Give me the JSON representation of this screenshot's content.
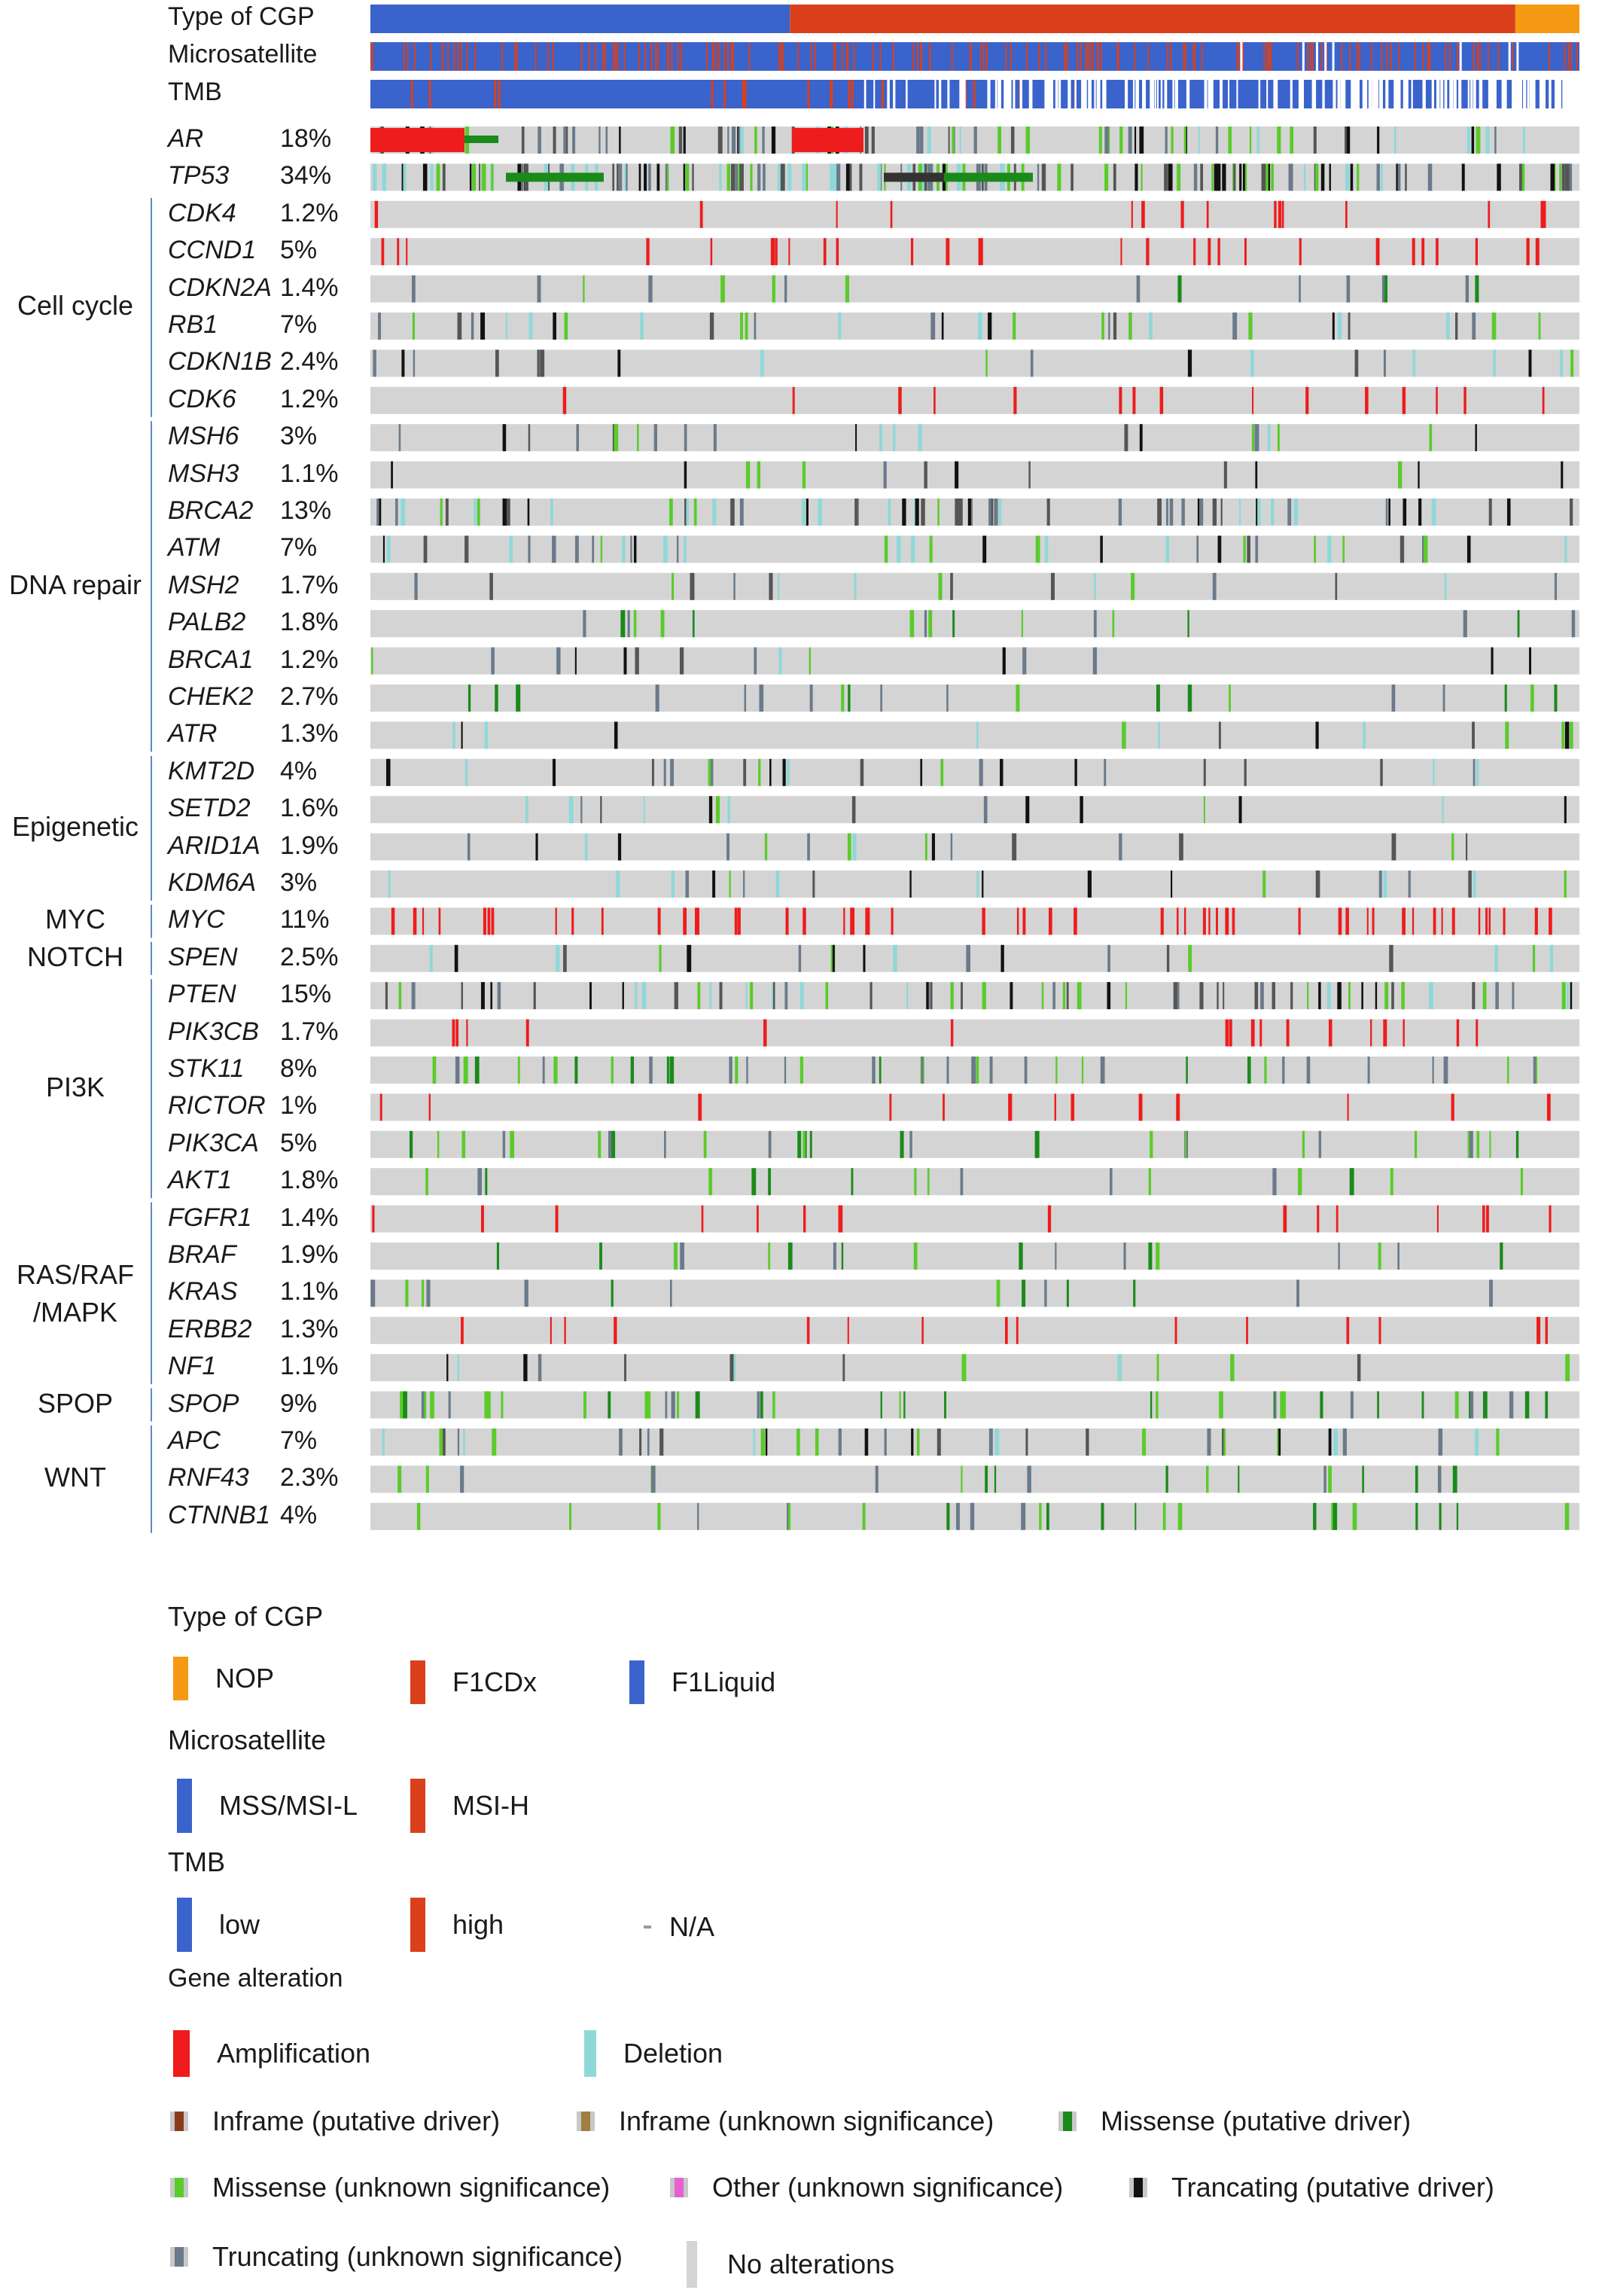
{
  "chart_data": {
    "type": "oncoprint",
    "tracks": [
      {
        "key": "cgp",
        "label": "Type of CGP"
      },
      {
        "key": "msi",
        "label": "Microsatellite"
      },
      {
        "key": "tmb",
        "label": "TMB"
      }
    ],
    "cgp_segments": [
      {
        "type": "F1Liquid",
        "fraction": 0.347
      },
      {
        "type": "F1CDx",
        "fraction": 0.6
      },
      {
        "type": "NOP",
        "fraction": 0.053
      }
    ],
    "groups": [
      {
        "name_lines": [
          "Cell cycle"
        ],
        "genes": [
          {
            "gene": "CDK4",
            "percent": "1.2%"
          },
          {
            "gene": "CCND1",
            "percent": "5%"
          },
          {
            "gene": "CDKN2A",
            "percent": "1.4%"
          },
          {
            "gene": "RB1",
            "percent": "7%"
          },
          {
            "gene": "CDKN1B",
            "percent": "2.4%"
          },
          {
            "gene": "CDK6",
            "percent": "1.2%"
          }
        ]
      },
      {
        "name_lines": [
          "DNA repair"
        ],
        "genes": [
          {
            "gene": "MSH6",
            "percent": "3%"
          },
          {
            "gene": "MSH3",
            "percent": "1.1%"
          },
          {
            "gene": "BRCA2",
            "percent": "13%"
          },
          {
            "gene": "ATM",
            "percent": "7%"
          },
          {
            "gene": "MSH2",
            "percent": "1.7%"
          },
          {
            "gene": "PALB2",
            "percent": "1.8%"
          },
          {
            "gene": "BRCA1",
            "percent": "1.2%"
          },
          {
            "gene": "CHEK2",
            "percent": "2.7%"
          },
          {
            "gene": "ATR",
            "percent": "1.3%"
          }
        ]
      },
      {
        "name_lines": [
          "Epigenetic"
        ],
        "genes": [
          {
            "gene": "KMT2D",
            "percent": "4%"
          },
          {
            "gene": "SETD2",
            "percent": "1.6%"
          },
          {
            "gene": "ARID1A",
            "percent": "1.9%"
          },
          {
            "gene": "KDM6A",
            "percent": "3%"
          }
        ]
      },
      {
        "name_lines": [
          "MYC"
        ],
        "genes": [
          {
            "gene": "MYC",
            "percent": "11%"
          }
        ]
      },
      {
        "name_lines": [
          "NOTCH"
        ],
        "genes": [
          {
            "gene": "SPEN",
            "percent": "2.5%"
          }
        ]
      },
      {
        "name_lines": [
          "PI3K"
        ],
        "genes": [
          {
            "gene": "PTEN",
            "percent": "15%"
          },
          {
            "gene": "PIK3CB",
            "percent": "1.7%"
          },
          {
            "gene": "STK11",
            "percent": "8%"
          },
          {
            "gene": "RICTOR",
            "percent": "1%"
          },
          {
            "gene": "PIK3CA",
            "percent": "5%"
          },
          {
            "gene": "AKT1",
            "percent": "1.8%"
          }
        ]
      },
      {
        "name_lines": [
          "RAS/RAF",
          "/MAPK"
        ],
        "genes": [
          {
            "gene": "FGFR1",
            "percent": "1.4%"
          },
          {
            "gene": "BRAF",
            "percent": "1.9%"
          },
          {
            "gene": "KRAS",
            "percent": "1.1%"
          },
          {
            "gene": "ERBB2",
            "percent": "1.3%"
          },
          {
            "gene": "NF1",
            "percent": "1.1%"
          }
        ]
      },
      {
        "name_lines": [
          "SPOP"
        ],
        "genes": [
          {
            "gene": "SPOP",
            "percent": "9%"
          }
        ]
      },
      {
        "name_lines": [
          "WNT"
        ],
        "genes": [
          {
            "gene": "APC",
            "percent": "7%"
          },
          {
            "gene": "RNF43",
            "percent": "2.3%"
          },
          {
            "gene": "CTNNB1",
            "percent": "4%"
          }
        ]
      }
    ],
    "ungrouped_genes": [
      {
        "gene": "AR",
        "percent": "18%"
      },
      {
        "gene": "TP53",
        "percent": "34%"
      }
    ]
  },
  "legend": {
    "cgp": {
      "title": "Type of CGP",
      "items": [
        {
          "label": "NOP",
          "color": "#f59a12"
        },
        {
          "label": "F1CDx",
          "color": "#d9401b"
        },
        {
          "label": "F1Liquid",
          "color": "#3a63cc"
        }
      ]
    },
    "msi": {
      "title": "Microsatellite",
      "items": [
        {
          "label": "MSS/MSI-L",
          "color": "#3a63cc"
        },
        {
          "label": "MSI-H",
          "color": "#d9401b"
        }
      ]
    },
    "tmb": {
      "title": "TMB",
      "items": [
        {
          "label": "low",
          "color": "#3a63cc"
        },
        {
          "label": "high",
          "color": "#d9401b"
        },
        {
          "label": "N/A",
          "color": "#9a9a9a"
        }
      ]
    },
    "alteration": {
      "title": "Gene alteration",
      "items": [
        {
          "label": "Amplification",
          "color": "#ee1c1c"
        },
        {
          "label": "Deletion",
          "color": "#8fd8d8"
        },
        {
          "label": "Inframe (putative driver)",
          "color": "#8b3a1a"
        },
        {
          "label": "Inframe (unknown significance)",
          "color": "#a08040"
        },
        {
          "label": "Missense (putative driver)",
          "color": "#1a8a1a"
        },
        {
          "label": "Missense (unknown significance)",
          "color": "#5acb2a"
        },
        {
          "label": "Other (unknown significance)",
          "color": "#e860d0"
        },
        {
          "label": "Trancating (putative driver)",
          "color": "#111111"
        },
        {
          "label": "Truncating (unknown significance)",
          "color": "#6a7a8a"
        },
        {
          "label": "No alterations",
          "color": "#d4d4d4"
        }
      ]
    }
  },
  "colors": {
    "no_alteration": "#d4d4d4",
    "amplification": "#ee1c1c",
    "deletion": "#8fd8d8",
    "missense_driver": "#1a8a1a",
    "missense_unknown": "#5acb2a",
    "truncating_driver": "#111111",
    "truncating_unknown": "#6a7a8a",
    "msi_high": "#d9401b",
    "low": "#3a63cc"
  }
}
